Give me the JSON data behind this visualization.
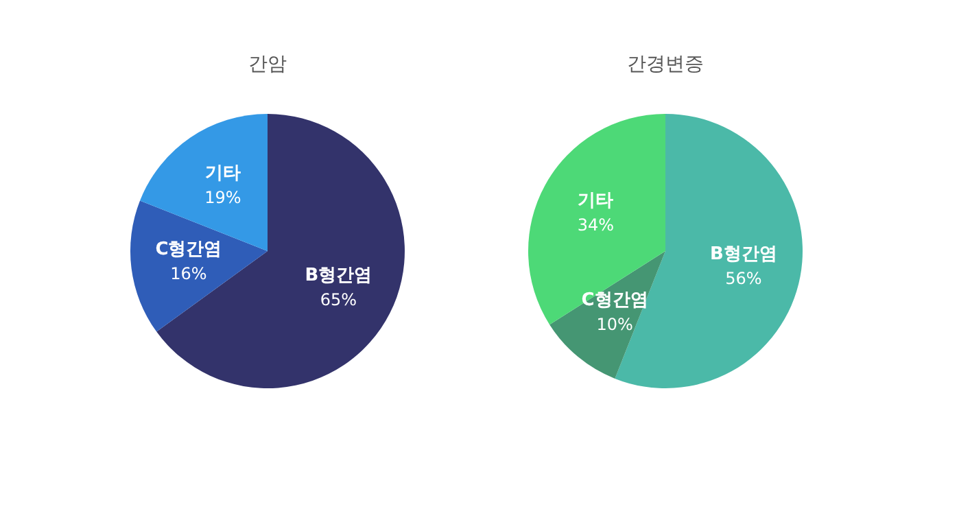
{
  "chart_data": [
    {
      "type": "pie",
      "title": "간암",
      "categories": [
        "B형간염",
        "C형간염",
        "기타"
      ],
      "values": [
        65,
        16,
        19
      ],
      "colors": [
        "#33336b",
        "#2f5db8",
        "#3499e6"
      ],
      "value_labels": [
        "65%",
        "16%",
        "19%"
      ],
      "legend": false
    },
    {
      "type": "pie",
      "title": "간경변증",
      "categories": [
        "B형간염",
        "C형간염",
        "기타"
      ],
      "values": [
        56,
        10,
        34
      ],
      "colors": [
        "#4bb9a8",
        "#459673",
        "#4dd977"
      ],
      "value_labels": [
        "56%",
        "10%",
        "34%"
      ],
      "legend": false
    }
  ]
}
